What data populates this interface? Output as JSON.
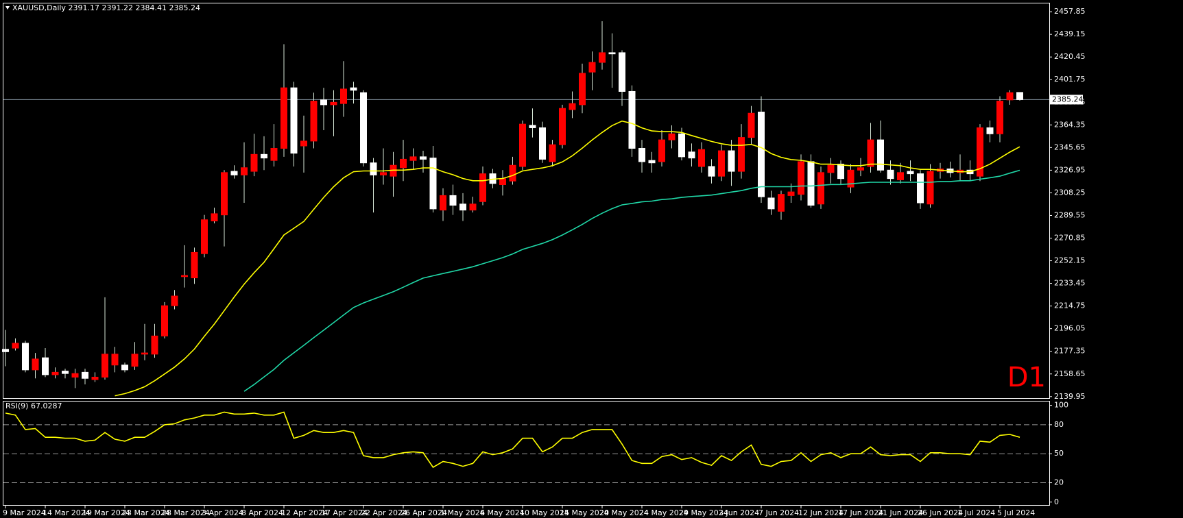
{
  "chart_data": {
    "type": "candlestick",
    "title": "XAUUSD,Daily",
    "categories": [
      "9 Mar 2024",
      null,
      null,
      null,
      "14 Mar 2024",
      null,
      null,
      null,
      "19 Mar 2024",
      null,
      null,
      null,
      "23 Mar 2024",
      null,
      null,
      null,
      "28 Mar 2024",
      null,
      null,
      null,
      "3 Apr 2024",
      null,
      null,
      null,
      "8 Apr 2024",
      null,
      null,
      null,
      "12 Apr 2024",
      null,
      null,
      null,
      "17 Apr 2024",
      null,
      null,
      null,
      "22 Apr 2024",
      null,
      null,
      null,
      "26 Apr 2024",
      null,
      null,
      null,
      "1 May 2024",
      null,
      null,
      null,
      "6 May 2024",
      null,
      null,
      null,
      "10 May 2024",
      null,
      null,
      null,
      "15 May 2024",
      null,
      null,
      null,
      "20 May 2024",
      null,
      null,
      null,
      "24 May 2024",
      null,
      null,
      null,
      "29 May 2024",
      null,
      null,
      null,
      "3 Jun 2024",
      null,
      null,
      null,
      "7 Jun 2024",
      null,
      null,
      null,
      "12 Jun 2024",
      null,
      null,
      null,
      "17 Jun 2024",
      null,
      null,
      null,
      "21 Jun 2024",
      null,
      null,
      null,
      "26 Jun 2024",
      null,
      null,
      null,
      "1 Jul 2024",
      null,
      null,
      null,
      "5 Jul 2024",
      null,
      null
    ],
    "open": [
      2179,
      2180,
      2184,
      2162,
      2172,
      2158,
      2161,
      2156,
      2160,
      2154,
      2156,
      2166,
      2166,
      2165,
      2175,
      2175,
      2190,
      2215,
      2239,
      2238,
      2258,
      2285,
      2290,
      2326,
      2323,
      2326,
      2340,
      2335,
      2345,
      2395,
      2347,
      2351,
      2385,
      2381,
      2382,
      2395,
      2391,
      2333,
      2323,
      2322,
      2329,
      2335,
      2338,
      2337,
      2294,
      2306,
      2299,
      2294,
      2301,
      2324,
      2315,
      2318,
      2330,
      2364,
      2362,
      2334,
      2348,
      2377,
      2381,
      2408,
      2416,
      2424,
      2424,
      2392,
      2345,
      2335,
      2334,
      2352,
      2357,
      2342,
      2330,
      2330,
      2322,
      2343,
      2326,
      2354,
      2375,
      2304,
      2293,
      2306,
      2307,
      2334,
      2299,
      2325,
      2332,
      2313,
      2327,
      2330,
      2352,
      2327,
      2319,
      2326,
      2324,
      2299,
      2326,
      2328,
      2325,
      2327,
      2322,
      2362,
      2357,
      2385,
      2391.17
    ],
    "high": [
      2195,
      2188,
      2186,
      2176,
      2180,
      2164,
      2163,
      2163,
      2163,
      2160,
      2222,
      2181,
      2168,
      2185,
      2200,
      2200,
      2218,
      2228,
      2265,
      2263,
      2290,
      2296,
      2327,
      2331,
      2350,
      2357,
      2355,
      2365,
      2431,
      2400,
      2372,
      2391,
      2395,
      2393,
      2417,
      2400,
      2393,
      2337,
      2345,
      2342,
      2352,
      2345,
      2343,
      2347,
      2312,
      2315,
      2308,
      2305,
      2330,
      2328,
      2327,
      2338,
      2368,
      2378,
      2367,
      2352,
      2381,
      2392,
      2415,
      2425,
      2450,
      2440,
      2426,
      2397,
      2352,
      2342,
      2360,
      2364,
      2362,
      2349,
      2350,
      2336,
      2348,
      2352,
      2365,
      2380,
      2388,
      2310,
      2310,
      2316,
      2340,
      2340,
      2330,
      2337,
      2335,
      2332,
      2337,
      2366,
      2368,
      2335,
      2333,
      2335,
      2327,
      2332,
      2333,
      2334,
      2340,
      2335,
      2365,
      2368,
      2388,
      2393,
      2391.22
    ],
    "low": [
      2165,
      2178,
      2160,
      2155,
      2156,
      2155,
      2155,
      2147,
      2150,
      2152,
      2154,
      2160,
      2160,
      2162,
      2170,
      2172,
      2188,
      2212,
      2230,
      2233,
      2255,
      2283,
      2264,
      2320,
      2300,
      2322,
      2327,
      2330,
      2338,
      2330,
      2325,
      2345,
      2360,
      2355,
      2371,
      2382,
      2330,
      2292,
      2315,
      2305,
      2318,
      2328,
      2325,
      2292,
      2285,
      2290,
      2285,
      2292,
      2298,
      2312,
      2306,
      2315,
      2327,
      2354,
      2333,
      2330,
      2345,
      2370,
      2374,
      2393,
      2410,
      2395,
      2380,
      2338,
      2325,
      2325,
      2330,
      2345,
      2335,
      2330,
      2325,
      2316,
      2318,
      2314,
      2320,
      2348,
      2300,
      2290,
      2286,
      2300,
      2302,
      2296,
      2295,
      2316,
      2315,
      2308,
      2322,
      2325,
      2325,
      2315,
      2316,
      2318,
      2295,
      2296,
      2320,
      2321,
      2318,
      2318,
      2318,
      2350,
      2350,
      2381,
      2384.41
    ],
    "close": [
      2177,
      2184,
      2162,
      2171,
      2158,
      2160,
      2159,
      2159,
      2155,
      2156,
      2175,
      2175,
      2162,
      2175,
      2176,
      2190,
      2215,
      2223,
      2240,
      2259,
      2286,
      2291,
      2325,
      2323,
      2329,
      2340,
      2337,
      2345,
      2395,
      2341,
      2351,
      2384,
      2381,
      2383,
      2394,
      2393,
      2333,
      2323,
      2325,
      2331,
      2336,
      2338,
      2336,
      2295,
      2306,
      2298,
      2294,
      2299,
      2324,
      2316,
      2320,
      2331,
      2365,
      2362,
      2336,
      2348,
      2378,
      2382,
      2407,
      2416,
      2424,
      2423,
      2392,
      2345,
      2334,
      2333,
      2352,
      2357,
      2338,
      2337,
      2344,
      2322,
      2343,
      2326,
      2354,
      2374,
      2305,
      2295,
      2307,
      2309,
      2334,
      2298,
      2325,
      2331,
      2320,
      2327,
      2329,
      2352,
      2327,
      2320,
      2325,
      2324,
      2300,
      2326,
      2328,
      2325,
      2327,
      2324,
      2362,
      2357,
      2384,
      2391,
      2385.24
    ],
    "up_color": "#ff0000",
    "down_color": "#ffffff",
    "wick_color": "#d8e8d8",
    "ylim": [
      2138.7,
      2464.7
    ],
    "yticks": [
      2139.95,
      2158.65,
      2177.35,
      2196.05,
      2214.75,
      2233.45,
      2252.15,
      2270.85,
      2289.55,
      2308.25,
      2326.95,
      2345.65,
      2364.35,
      2383.05,
      2401.75,
      2420.45,
      2439.15,
      2457.85
    ],
    "moving_averages": [
      {
        "color": "#ffff00",
        "values": [
          null,
          null,
          null,
          null,
          null,
          null,
          null,
          null,
          null,
          null,
          null,
          2140.6,
          2142.4,
          2144.9,
          2148.1,
          2153.0,
          2158.6,
          2164.3,
          2171.1,
          2179.2,
          2189.8,
          2199.8,
          2211.0,
          2222.2,
          2232.8,
          2242.2,
          2250.9,
          2262.1,
          2273.4,
          2279.0,
          2284.6,
          2294.6,
          2304.5,
          2313.3,
          2320.7,
          2325.7,
          2326.3,
          2326.3,
          2326.3,
          2327.0,
          2327.0,
          2327.6,
          2328.8,
          2328.8,
          2325.7,
          2323.2,
          2320.1,
          2318.2,
          2318.2,
          2319.5,
          2320.1,
          2322.6,
          2326.3,
          2327.6,
          2328.8,
          2330.7,
          2333.8,
          2338.8,
          2345.1,
          2351.9,
          2358.1,
          2363.8,
          2367.5,
          2365.6,
          2361.9,
          2359.4,
          2358.8,
          2358.8,
          2358.1,
          2355.6,
          2353.2,
          2350.7,
          2348.8,
          2347.5,
          2347.5,
          2348.2,
          2345.7,
          2340.7,
          2337.6,
          2335.7,
          2335.1,
          2333.8,
          2331.9,
          2331.9,
          2331.3,
          2330.7,
          2330.7,
          2331.9,
          2331.9,
          2331.3,
          2330.7,
          2328.8,
          2327.6,
          2327.6,
          2327.0,
          2326.3,
          2325.7,
          2325.7,
          2328.2,
          2331.9,
          2336.9,
          2341.9,
          2346.3
        ]
      },
      {
        "color": "#20d8a8",
        "values": [
          null,
          null,
          null,
          null,
          null,
          null,
          null,
          null,
          null,
          null,
          null,
          null,
          null,
          null,
          null,
          null,
          null,
          null,
          null,
          null,
          null,
          null,
          null,
          null,
          2144.3,
          2149.9,
          2156.2,
          2162.4,
          2169.9,
          2176.1,
          2182.3,
          2188.6,
          2194.8,
          2201.0,
          2207.3,
          2213.5,
          2217.3,
          2220.4,
          2223.5,
          2226.6,
          2230.3,
          2234.1,
          2237.8,
          2239.7,
          2241.6,
          2243.4,
          2245.3,
          2247.2,
          2249.7,
          2252.2,
          2254.7,
          2257.8,
          2261.5,
          2264.0,
          2266.5,
          2269.6,
          2273.4,
          2277.7,
          2282.1,
          2287.1,
          2291.4,
          2295.2,
          2298.3,
          2299.5,
          2300.8,
          2301.4,
          2302.7,
          2303.3,
          2304.5,
          2305.2,
          2305.8,
          2306.4,
          2307.6,
          2308.9,
          2310.1,
          2312.0,
          2313.3,
          2313.3,
          2313.3,
          2313.3,
          2313.9,
          2313.9,
          2314.5,
          2315.1,
          2315.1,
          2315.7,
          2316.4,
          2317.0,
          2317.0,
          2317.0,
          2317.0,
          2317.0,
          2317.0,
          2317.0,
          2317.6,
          2317.6,
          2318.2,
          2318.2,
          2319.5,
          2320.7,
          2322.0,
          2324.5,
          2326.9
        ]
      }
    ],
    "annotation": "D1",
    "annotation_color": "#ff0000",
    "indicator": {
      "name": "RSI(9)",
      "color": "#ffff00",
      "values": [
        92,
        90,
        75,
        76,
        67,
        67,
        66,
        66,
        63,
        64,
        72,
        65,
        63,
        67,
        67,
        73,
        80,
        81,
        85,
        87,
        90,
        90,
        93,
        91,
        91,
        92,
        90,
        90,
        93,
        66,
        69,
        74,
        72,
        72,
        74,
        72,
        48,
        46,
        46,
        49,
        51,
        52,
        51,
        36,
        42,
        40,
        37,
        40,
        52,
        49,
        51,
        55,
        66,
        66,
        52,
        57,
        66,
        66,
        72,
        75,
        75,
        75,
        60,
        43,
        40,
        40,
        47,
        49,
        44,
        46,
        41,
        38,
        48,
        43,
        52,
        59,
        39,
        37,
        42,
        43,
        51,
        42,
        49,
        51,
        46,
        50,
        50,
        57,
        49,
        48,
        49,
        49,
        42,
        51,
        51,
        50,
        50,
        49,
        63,
        62,
        69,
        70,
        67.0287
      ],
      "ylim": [
        -3,
        104
      ],
      "yticks": [
        100,
        80,
        50,
        20,
        0
      ]
    }
  }
}
